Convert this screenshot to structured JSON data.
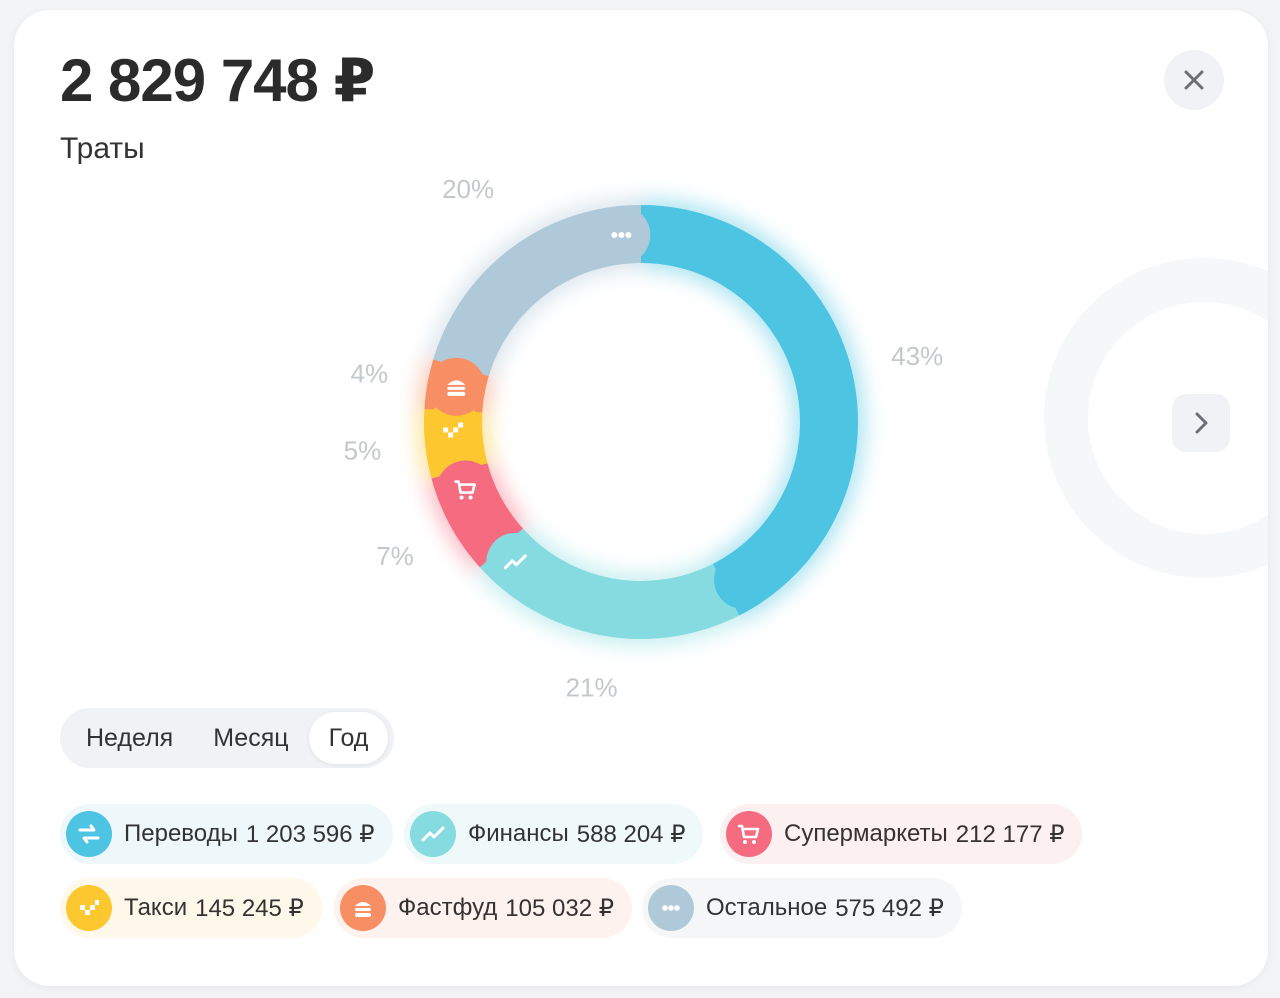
{
  "header": {
    "total": "2 829 748 ₽",
    "subtitle": "Траты"
  },
  "icons": {
    "close": "close-icon",
    "next": "chevron-right-icon"
  },
  "chart_data": {
    "type": "pie",
    "style": "donut",
    "labels": [
      "Переводы",
      "Финансы",
      "Супермаркеты",
      "Такси",
      "Фастфуд",
      "Остальное"
    ],
    "values": [
      1203596,
      588204,
      212177,
      145245,
      105032,
      575492
    ],
    "percent_labels": [
      "43%",
      "21%",
      "7%",
      "5%",
      "4%",
      "20%"
    ],
    "colors": [
      "#4cc4e2",
      "#86dbe0",
      "#f56c80",
      "#fcc72f",
      "#f88e64",
      "#b0c9d9"
    ],
    "icons": [
      "transfer-icon",
      "chart-up-icon",
      "cart-icon",
      "taxi-icon",
      "burger-icon",
      "more-dots-icon"
    ]
  },
  "period_tabs": [
    {
      "label": "Неделя",
      "active": false
    },
    {
      "label": "Месяц",
      "active": false
    },
    {
      "label": "Год",
      "active": true
    }
  ],
  "categories": [
    {
      "label": "Переводы",
      "amount": "1 203 596 ₽",
      "color": "#4cc4e2",
      "bg": "#eef8fb",
      "icon": "transfer-icon"
    },
    {
      "label": "Финансы",
      "amount": "588 204 ₽",
      "color": "#86dbe0",
      "bg": "#eff9f9",
      "icon": "chart-up-icon"
    },
    {
      "label": "Супермаркеты",
      "amount": "212 177 ₽",
      "color": "#f56c80",
      "bg": "#fdf0f1",
      "icon": "cart-icon"
    },
    {
      "label": "Такси",
      "amount": "145 245 ₽",
      "color": "#fcc72f",
      "bg": "#fdf8ea",
      "icon": "taxi-icon"
    },
    {
      "label": "Фастфуд",
      "amount": "105 032 ₽",
      "color": "#f88e64",
      "bg": "#fdf2ed",
      "icon": "burger-icon"
    },
    {
      "label": "Остальное",
      "amount": "575 492 ₽",
      "color": "#b0c9d9",
      "bg": "#f4f6f8",
      "icon": "more-dots-icon"
    }
  ]
}
